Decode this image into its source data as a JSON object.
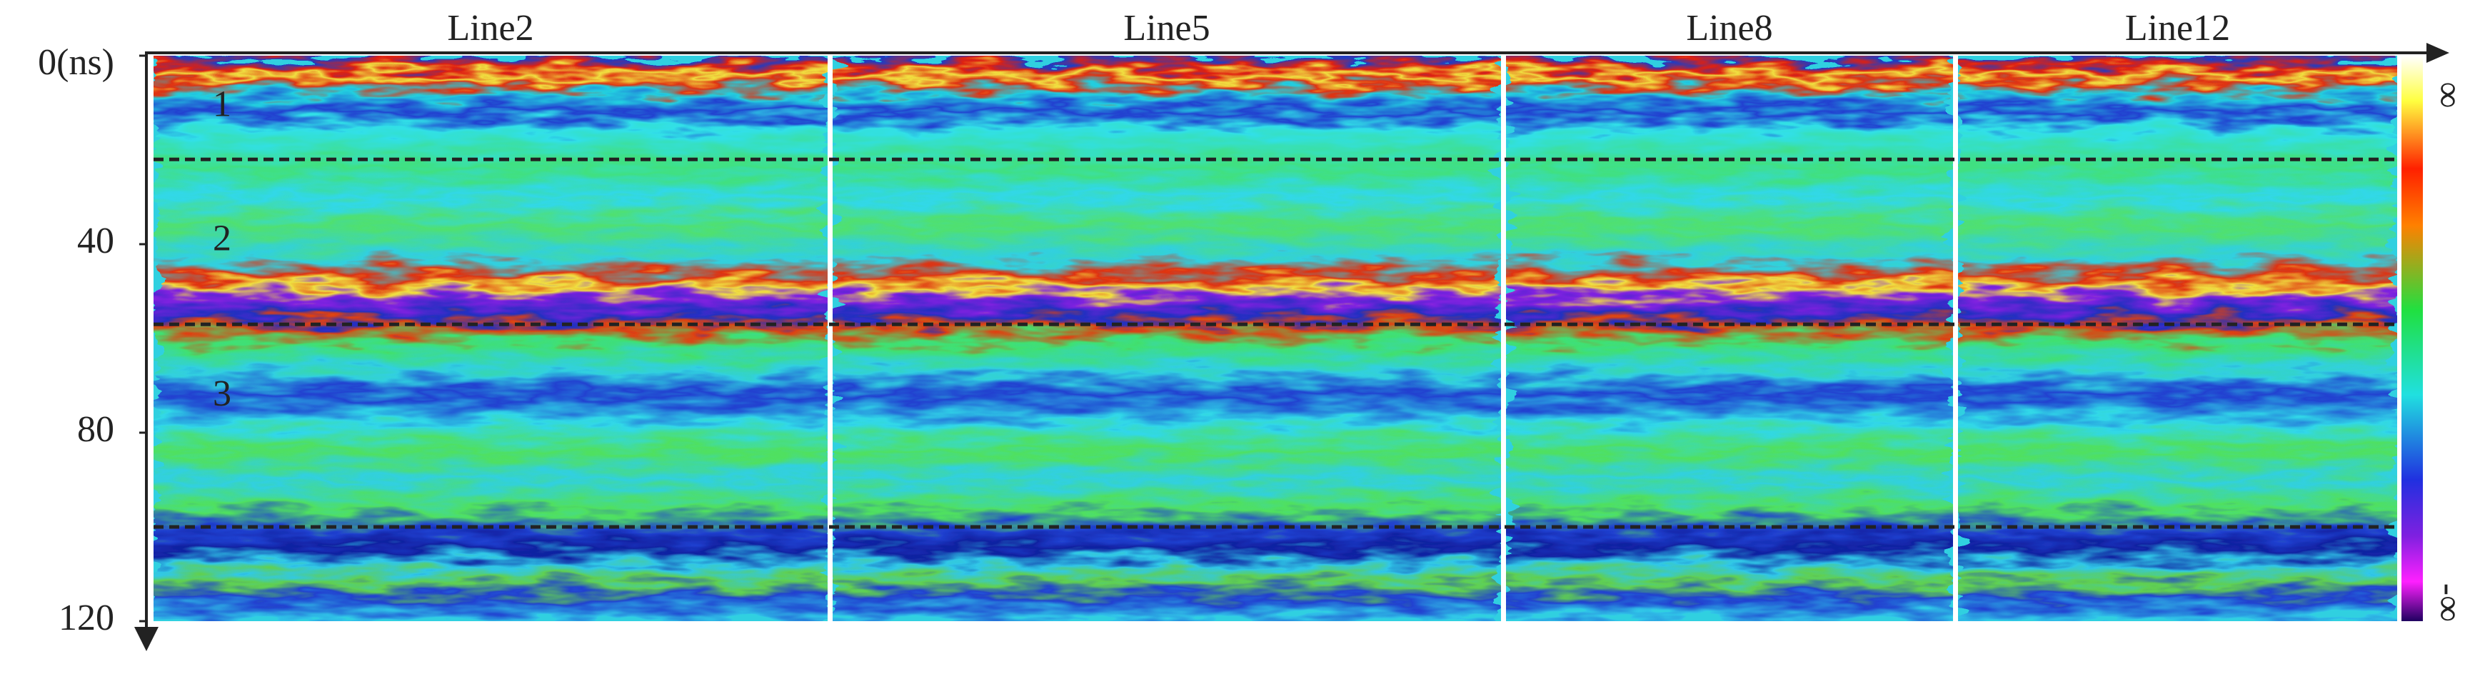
{
  "chart_data": {
    "type": "radargram",
    "panels": [
      "Line2",
      "Line5",
      "Line8",
      "Line12"
    ],
    "ylim": [
      0,
      120
    ],
    "yticks": [
      {
        "value": 0,
        "label": "0(ns)"
      },
      40,
      80,
      120
    ],
    "boundaries": [
      22,
      57,
      100
    ],
    "layers": [
      "1",
      "2",
      "3"
    ],
    "colorbar_labels": [
      "∞",
      "-∞"
    ]
  }
}
